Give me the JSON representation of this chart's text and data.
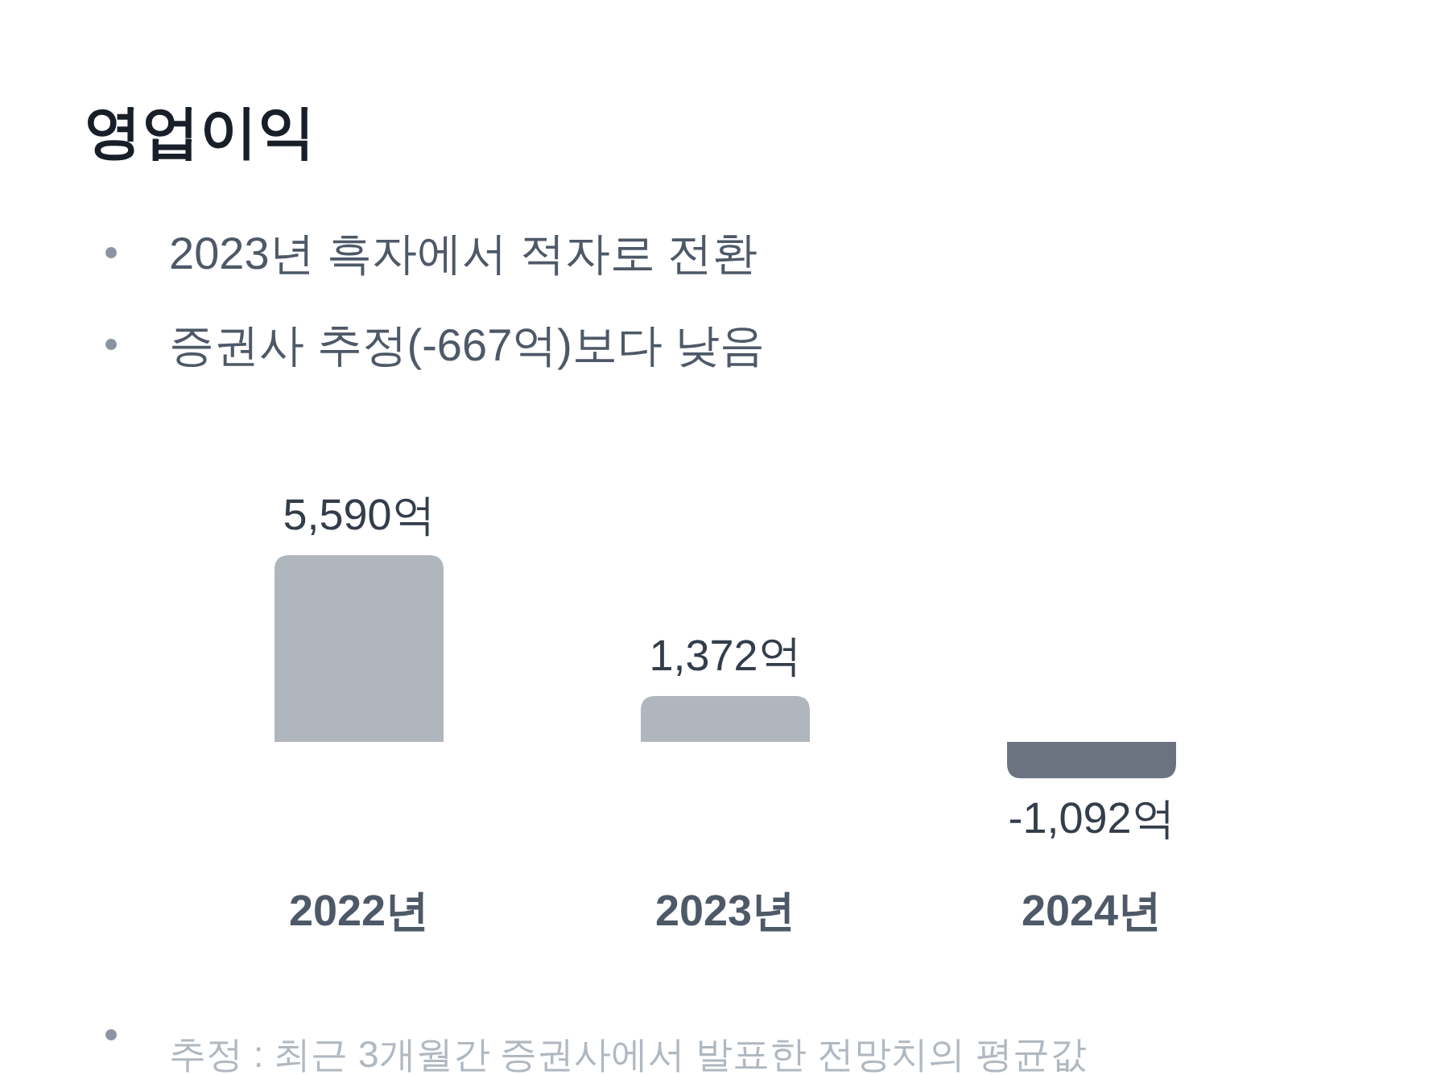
{
  "chart_data": {
    "type": "bar",
    "title": "영업이익",
    "subtitle": "2023년 흑자에서 적자로 전환",
    "annotations": [
      "증권사 추정(-667억)보다 낮음",
      "추정 : 최근 3개월간 증권사에서 발표한 전망치의 평균값"
    ],
    "categories": [
      "2022년",
      "2023년",
      "2024년"
    ],
    "values": [
      5590,
      1372,
      -1092
    ],
    "colors": [
      "#b0b6be",
      "#b0b6be",
      "#6b7380"
    ],
    "value_labels": [
      "5,590억",
      "1,372억",
      "-1,092억"
    ]
  }
}
